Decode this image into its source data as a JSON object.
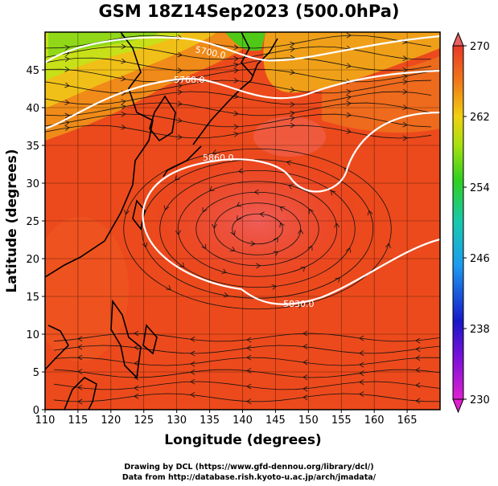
{
  "title": "GSM 18Z14Sep2023 (500.0hPa)",
  "xaxis": {
    "label": "Longitude (degrees)",
    "ticks": [
      "110",
      "115",
      "120",
      "125",
      "130",
      "135",
      "140",
      "145",
      "150",
      "155",
      "160",
      "165"
    ],
    "range": [
      110,
      170
    ]
  },
  "yaxis": {
    "label": "Latitude  (degrees)",
    "ticks": [
      "0",
      "5",
      "10",
      "15",
      "20",
      "25",
      "30",
      "35",
      "40",
      "45"
    ],
    "range": [
      0,
      50
    ]
  },
  "colorbar": {
    "ticks": [
      "230",
      "238",
      "246",
      "254",
      "262",
      "270"
    ],
    "range": [
      230,
      270
    ]
  },
  "contours": [
    {
      "label": "5700.0"
    },
    {
      "label": "5760.0"
    },
    {
      "label": "5860.0"
    },
    {
      "label": "5830.0"
    }
  ],
  "credits": {
    "line1": "Drawing by DCL (https://www.gfd-dennou.org/library/dcl/)",
    "line2": "Data from http://database.rish.kyoto-u.ac.jp/arch/jmadata/"
  }
}
